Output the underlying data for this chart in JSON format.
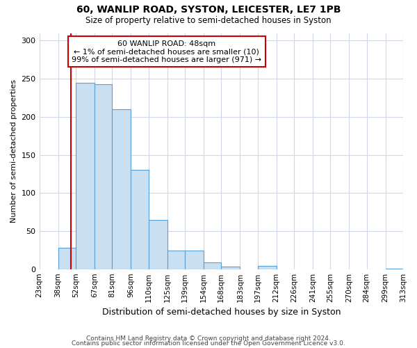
{
  "title": "60, WANLIP ROAD, SYSTON, LEICESTER, LE7 1PB",
  "subtitle": "Size of property relative to semi-detached houses in Syston",
  "xlabel": "Distribution of semi-detached houses by size in Syston",
  "ylabel": "Number of semi-detached properties",
  "bin_edges": [
    23,
    38,
    52,
    67,
    81,
    96,
    110,
    125,
    139,
    154,
    168,
    183,
    197,
    212,
    226,
    241,
    255,
    270,
    284,
    299,
    313
  ],
  "counts": [
    0,
    28,
    245,
    243,
    210,
    130,
    65,
    24,
    24,
    9,
    3,
    0,
    4,
    0,
    0,
    0,
    0,
    0,
    0,
    1
  ],
  "bar_color": "#c9dff2",
  "bar_edgecolor": "#5a9fd4",
  "property_line_x": 48,
  "property_line_color": "#cc0000",
  "annotation_box_color": "#cc0000",
  "annotation_title": "60 WANLIP ROAD: 48sqm",
  "annotation_line1": "← 1% of semi-detached houses are smaller (10)",
  "annotation_line2": "99% of semi-detached houses are larger (971) →",
  "ylim": [
    0,
    310
  ],
  "yticks": [
    0,
    50,
    100,
    150,
    200,
    250,
    300
  ],
  "footer_line1": "Contains HM Land Registry data © Crown copyright and database right 2024.",
  "footer_line2": "Contains public sector information licensed under the Open Government Licence v3.0.",
  "background_color": "#ffffff",
  "grid_color": "#d0d8e8"
}
